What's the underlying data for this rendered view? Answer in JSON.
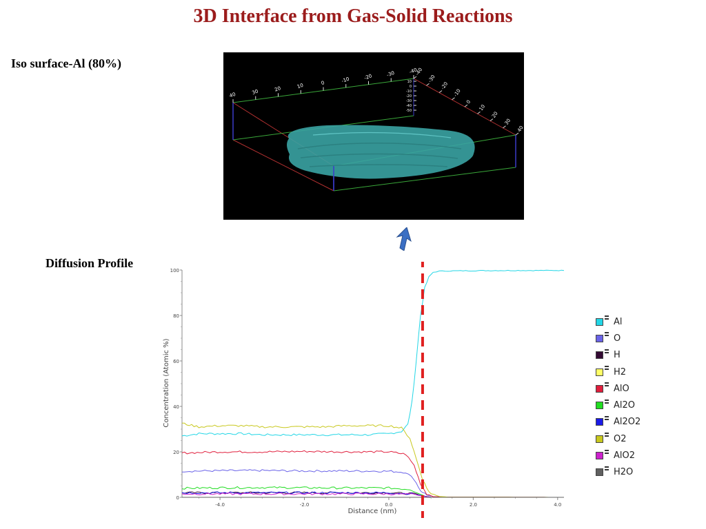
{
  "slide": {
    "title": "3D Interface from Gas-Solid Reactions",
    "iso_label": "Iso surface-Al (80%)",
    "diffusion_label": "Diffusion Profile"
  },
  "render3d": {
    "top_axis_ticks": [
      "40",
      "30",
      "20",
      "10",
      "0",
      "-10",
      "-20",
      "-30",
      "-40"
    ],
    "right_axis_ticks": [
      "-40",
      "-30",
      "-20",
      "-10",
      "0",
      "10",
      "20",
      "30",
      "40"
    ],
    "vertical_axis_ticks": [
      "10",
      "0",
      "-10",
      "-20",
      "-30",
      "-40",
      "-50"
    ]
  },
  "colors": {
    "title": "#9b1c1c",
    "interface_marker": "#e02020",
    "arrow": "#3b6fc4",
    "surface": "#3aa3a3"
  },
  "chart_data": {
    "type": "line",
    "xlabel": "Distance (nm)",
    "ylabel": "Concentration (Atomic %)",
    "xlim": [
      -4.9,
      4.15
    ],
    "ylim": [
      0,
      100
    ],
    "x_ticks": [
      -4.0,
      -2.0,
      0.0,
      2.0,
      4.0
    ],
    "x_tick_labels": [
      "-4.0",
      "-2.0",
      "0.0",
      "2.0",
      "4.0"
    ],
    "y_ticks": [
      0,
      20,
      40,
      60,
      80,
      100
    ],
    "y_tick_labels": [
      "0",
      "20",
      "40",
      "60",
      "80",
      "100"
    ],
    "interface_x": 0.8,
    "series": [
      {
        "name": "Al",
        "color": "#22d6e6",
        "x": [
          -4.9,
          -4.5,
          -4.0,
          -3.5,
          -3.0,
          -2.5,
          -2.0,
          -1.5,
          -1.0,
          -0.5,
          0.0,
          0.3,
          0.45,
          0.55,
          0.65,
          0.75,
          0.85,
          0.95,
          1.05,
          1.2,
          1.4,
          2.0,
          3.0,
          4.15
        ],
        "values": [
          27,
          28,
          28,
          28,
          27.5,
          27.5,
          27.5,
          27.5,
          27.5,
          27.5,
          28,
          29,
          32,
          42,
          60,
          80,
          92,
          97,
          99,
          99.5,
          99.6,
          99.7,
          99.8,
          99.8
        ]
      },
      {
        "name": "O",
        "color": "#6a63e8",
        "x": [
          -4.9,
          -4.0,
          -3.0,
          -2.0,
          -1.0,
          0.0,
          0.4,
          0.6,
          0.75,
          0.9,
          1.05,
          1.3,
          4.15
        ],
        "values": [
          11.5,
          11.7,
          11.8,
          11.6,
          11.6,
          11.5,
          11,
          8,
          3,
          1,
          0.3,
          0.1,
          0
        ]
      },
      {
        "name": "H",
        "color": "#330a33",
        "x": [
          -4.9,
          -4.0,
          -2.0,
          0.0,
          0.6,
          0.85,
          1.0,
          4.15
        ],
        "values": [
          2,
          2,
          2,
          2,
          1.5,
          0.5,
          0,
          0
        ]
      },
      {
        "name": "H2",
        "color": "#ffff66",
        "x": [
          -4.9,
          4.15
        ],
        "values": [
          0,
          0
        ]
      },
      {
        "name": "AlO",
        "color": "#e01e3c",
        "x": [
          -4.9,
          -4.0,
          -3.0,
          -2.0,
          -1.0,
          0.0,
          0.4,
          0.6,
          0.75,
          0.9,
          1.05,
          1.3,
          4.15
        ],
        "values": [
          19.5,
          20,
          20,
          20.2,
          20,
          20,
          19,
          14,
          6,
          1.5,
          0.3,
          0.1,
          0
        ]
      },
      {
        "name": "Al2O",
        "color": "#22dd22",
        "x": [
          -4.9,
          -4.0,
          -3.0,
          -2.0,
          -1.0,
          0.0,
          0.5,
          0.7,
          0.85,
          1.0,
          4.15
        ],
        "values": [
          4,
          4.2,
          4.3,
          4.2,
          4.1,
          4.1,
          3.5,
          2,
          0.5,
          0,
          0
        ]
      },
      {
        "name": "Al2O2",
        "color": "#1a1ae8",
        "x": [
          -4.9,
          -4.0,
          -2.0,
          0.0,
          0.6,
          0.85,
          1.0,
          4.15
        ],
        "values": [
          2,
          2,
          2,
          2,
          1.5,
          0.5,
          0,
          0
        ]
      },
      {
        "name": "O2",
        "color": "#c8c81e",
        "x": [
          -4.9,
          -4.5,
          -4.0,
          -3.5,
          -3.0,
          -2.5,
          -2.0,
          -1.5,
          -1.0,
          -0.5,
          0.0,
          0.3,
          0.5,
          0.6,
          0.7,
          0.8,
          0.9,
          1.0,
          1.2,
          1.4,
          4.15
        ],
        "values": [
          32.5,
          31,
          31.5,
          31.5,
          31,
          31,
          31,
          31,
          31.5,
          31.5,
          31.5,
          30.5,
          26,
          20,
          14,
          8,
          4,
          1.5,
          0.4,
          0.1,
          0
        ]
      },
      {
        "name": "AlO2",
        "color": "#cc22cc",
        "x": [
          -4.9,
          -4.0,
          -2.0,
          0.0,
          0.6,
          0.85,
          1.0,
          4.15
        ],
        "values": [
          1.5,
          1.5,
          1.5,
          1.5,
          1.2,
          0.4,
          0,
          0
        ]
      },
      {
        "name": "H2O",
        "color": "#606060",
        "x": [
          -4.9,
          4.15
        ],
        "values": [
          0,
          0
        ]
      }
    ]
  }
}
